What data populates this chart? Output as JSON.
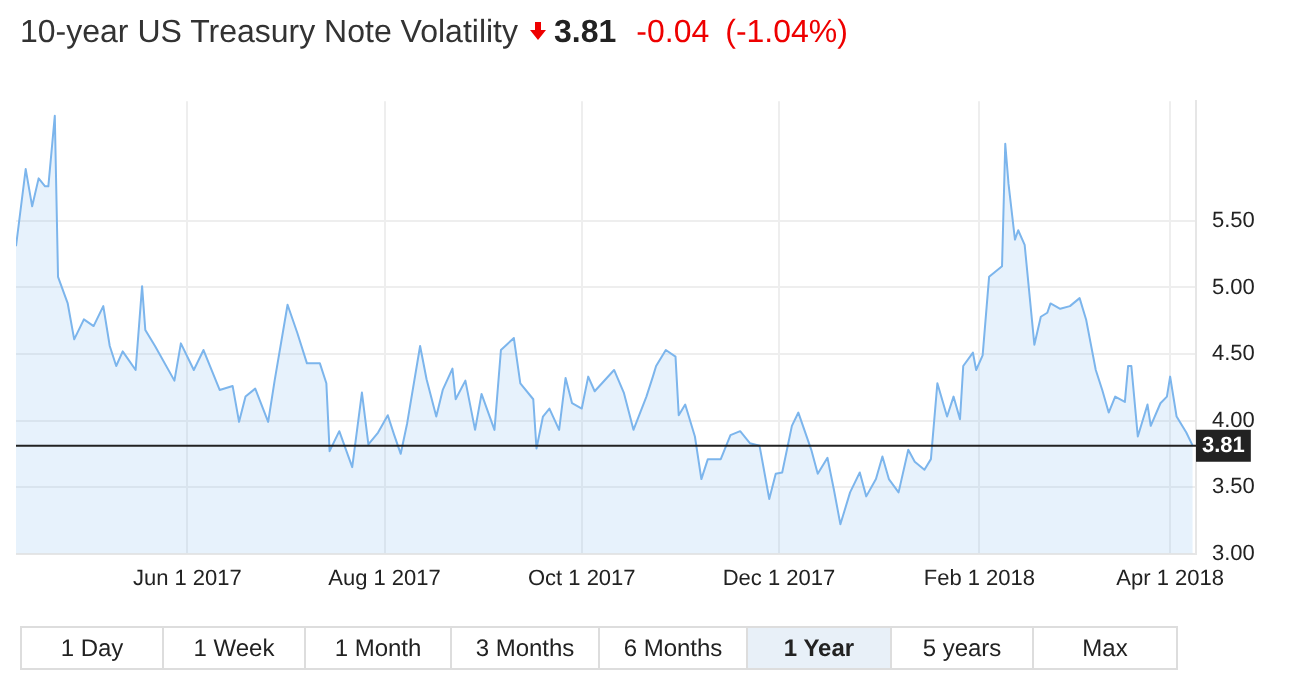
{
  "chart_data": {
    "type": "area",
    "title": "10-year US Treasury Note Volatility",
    "annotations": [
      "3.81",
      "-0.04",
      "(-1.04%)",
      "1 Day",
      "1 Week",
      "1 Month",
      "3 Months",
      "6 Months",
      "1 Year",
      "5 years",
      "Max"
    ],
    "x": [
      "2017-04-09",
      "2017-04-12",
      "2017-04-14",
      "2017-04-16",
      "2017-04-18",
      "2017-04-19",
      "2017-04-21",
      "2017-04-22",
      "2017-04-25",
      "2017-04-27",
      "2017-04-30",
      "2017-05-03",
      "2017-05-06",
      "2017-05-08",
      "2017-05-10",
      "2017-05-12",
      "2017-05-16",
      "2017-05-18",
      "2017-05-19",
      "2017-05-22",
      "2017-05-28",
      "2017-05-30",
      "2017-06-03",
      "2017-06-06",
      "2017-06-11",
      "2017-06-15",
      "2017-06-17",
      "2017-06-19",
      "2017-06-22",
      "2017-06-26",
      "2017-06-28",
      "2017-07-02",
      "2017-07-05",
      "2017-07-08",
      "2017-07-12",
      "2017-07-14",
      "2017-07-15",
      "2017-07-18",
      "2017-07-22",
      "2017-07-25",
      "2017-07-27",
      "2017-07-30",
      "2017-08-02",
      "2017-08-04",
      "2017-08-06",
      "2017-08-08",
      "2017-08-12",
      "2017-08-14",
      "2017-08-17",
      "2017-08-19",
      "2017-08-22",
      "2017-08-23",
      "2017-08-26",
      "2017-08-29",
      "2017-08-31",
      "2017-09-04",
      "2017-09-06",
      "2017-09-10",
      "2017-09-12",
      "2017-09-16",
      "2017-09-17",
      "2017-09-19",
      "2017-09-21",
      "2017-09-24",
      "2017-09-26",
      "2017-09-28",
      "2017-10-01",
      "2017-10-03",
      "2017-10-05",
      "2017-10-11",
      "2017-10-14",
      "2017-10-17",
      "2017-10-21",
      "2017-10-23",
      "2017-10-24",
      "2017-10-27",
      "2017-10-30",
      "2017-10-31",
      "2017-11-02",
      "2017-11-05",
      "2017-11-07",
      "2017-11-09",
      "2017-11-13",
      "2017-11-16",
      "2017-11-19",
      "2017-11-22",
      "2017-11-25",
      "2017-11-28",
      "2017-11-30",
      "2017-12-02",
      "2017-12-05",
      "2017-12-07",
      "2017-12-11",
      "2017-12-13",
      "2017-12-16",
      "2017-12-18",
      "2017-12-20",
      "2017-12-23",
      "2017-12-26",
      "2017-12-28",
      "2017-12-31",
      "2018-01-02",
      "2018-01-04",
      "2018-01-07",
      "2018-01-10",
      "2018-01-12",
      "2018-01-15",
      "2018-01-17",
      "2018-01-19",
      "2018-01-22",
      "2018-01-24",
      "2018-01-26",
      "2018-01-27",
      "2018-01-30",
      "2018-01-31",
      "2018-02-02",
      "2018-02-04",
      "2018-02-08",
      "2018-02-09",
      "2018-02-10",
      "2018-02-12",
      "2018-02-13",
      "2018-02-15",
      "2018-02-18",
      "2018-02-20",
      "2018-02-22",
      "2018-02-23",
      "2018-02-26",
      "2018-03-01",
      "2018-03-04",
      "2018-03-06",
      "2018-03-09",
      "2018-03-11",
      "2018-03-13",
      "2018-03-15",
      "2018-03-18",
      "2018-03-19",
      "2018-03-20",
      "2018-03-22",
      "2018-03-25",
      "2018-03-26",
      "2018-03-29",
      "2018-03-31",
      "2018-04-01",
      "2018-04-03",
      "2018-04-06",
      "2018-04-08"
    ],
    "values": [
      5.31,
      5.89,
      5.61,
      5.82,
      5.76,
      5.76,
      6.29,
      5.08,
      4.88,
      4.61,
      4.76,
      4.71,
      4.86,
      4.56,
      4.41,
      4.52,
      4.38,
      5.01,
      4.68,
      4.56,
      4.3,
      4.58,
      4.38,
      4.53,
      4.23,
      4.26,
      3.99,
      4.18,
      4.24,
      3.99,
      4.3,
      4.87,
      4.66,
      4.43,
      4.43,
      4.28,
      3.77,
      3.92,
      3.65,
      4.21,
      3.82,
      3.91,
      4.04,
      3.89,
      3.75,
      3.98,
      4.56,
      4.31,
      4.03,
      4.23,
      4.39,
      4.16,
      4.3,
      3.93,
      4.2,
      3.93,
      4.53,
      4.62,
      4.28,
      4.16,
      3.79,
      4.03,
      4.09,
      3.93,
      4.32,
      4.13,
      4.09,
      4.33,
      4.22,
      4.38,
      4.21,
      3.93,
      4.18,
      4.33,
      4.41,
      4.53,
      4.48,
      4.04,
      4.12,
      3.88,
      3.56,
      3.71,
      3.71,
      3.89,
      3.92,
      3.83,
      3.81,
      3.41,
      3.6,
      3.61,
      3.96,
      4.06,
      3.78,
      3.6,
      3.72,
      3.48,
      3.22,
      3.46,
      3.61,
      3.43,
      3.56,
      3.73,
      3.56,
      3.46,
      3.78,
      3.69,
      3.63,
      3.71,
      4.28,
      4.03,
      4.18,
      4.01,
      4.41,
      4.51,
      4.38,
      4.49,
      5.08,
      5.16,
      6.08,
      5.78,
      5.36,
      5.43,
      5.32,
      4.57,
      4.78,
      4.81,
      4.88,
      4.84,
      4.86,
      4.92,
      4.76,
      4.38,
      4.23,
      4.06,
      4.18,
      4.14,
      4.41,
      4.41,
      3.88,
      4.12,
      3.96,
      4.13,
      4.18,
      4.33,
      4.03,
      3.91,
      3.81
    ],
    "color": "#7cb5ec",
    "xlim": [
      "2017-04-09",
      "2018-04-09"
    ],
    "xticks": [
      {
        "value": "2017-06-01",
        "label": "Jun 1 2017"
      },
      {
        "value": "2017-08-01",
        "label": "Aug 1 2017"
      },
      {
        "value": "2017-10-01",
        "label": "Oct 1 2017"
      },
      {
        "value": "2017-12-01",
        "label": "Dec 1 2017"
      },
      {
        "value": "2018-02-01",
        "label": "Feb 1 2018"
      },
      {
        "value": "2018-04-01",
        "label": "Apr 1 2018"
      }
    ],
    "ylim": [
      3,
      6.4
    ],
    "yticks": [
      {
        "value": 3,
        "label": "3.00"
      },
      {
        "value": 3.5,
        "label": "3.50"
      },
      {
        "value": 4,
        "label": "4.00"
      },
      {
        "value": 4.5,
        "label": "4.50"
      },
      {
        "value": 5,
        "label": "5.00"
      },
      {
        "value": 5.5,
        "label": "5.50"
      }
    ],
    "ref_lines": [
      {
        "axis": "y",
        "value": 3.81,
        "label": "3.81",
        "color": "#222222"
      }
    ],
    "grid": true,
    "legend": false,
    "marker": "none",
    "line_style": "solid"
  }
}
